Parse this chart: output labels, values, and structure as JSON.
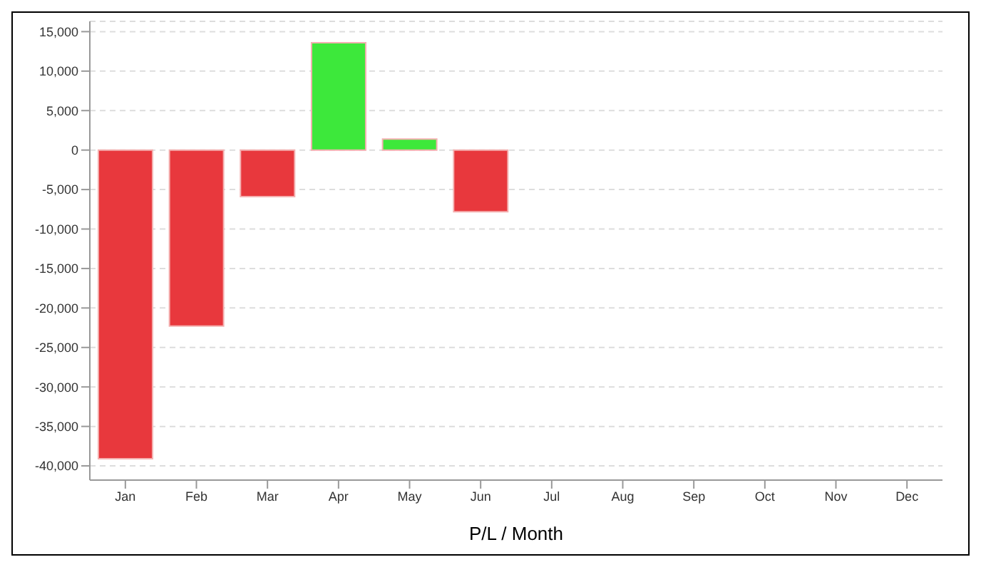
{
  "chart_data": {
    "type": "bar",
    "xlabel": "P/L / Month",
    "categories": [
      "Jan",
      "Feb",
      "Mar",
      "Apr",
      "May",
      "Jun",
      "Jul",
      "Aug",
      "Sep",
      "Oct",
      "Nov",
      "Dec"
    ],
    "values": [
      -39100,
      -22300,
      -5900,
      13600,
      1400,
      -7800,
      null,
      null,
      null,
      null,
      null,
      null
    ],
    "colors": [
      "#e8383d",
      "#e8383d",
      "#e8383d",
      "#3de83b",
      "#3de83b",
      "#e8383d",
      "#e8383d",
      "#e8383d",
      "#e8383d",
      "#e8383d",
      "#e8383d",
      "#e8383d"
    ],
    "ylim": [
      -41800,
      16300
    ],
    "yticks": [
      {
        "value": -40000,
        "label": "-40,000"
      },
      {
        "value": -35000,
        "label": "-35,000"
      },
      {
        "value": -30000,
        "label": "-30,000"
      },
      {
        "value": -25000,
        "label": "-25,000"
      },
      {
        "value": -20000,
        "label": "-20,000"
      },
      {
        "value": -15000,
        "label": "-15,000"
      },
      {
        "value": -10000,
        "label": "-10,000"
      },
      {
        "value": -5000,
        "label": "-5,000"
      },
      0,
      {
        "value": 5000,
        "label": "5,000"
      },
      {
        "value": 10000,
        "label": "10,000"
      },
      {
        "value": 15000,
        "label": "15,000"
      }
    ],
    "grid": "y",
    "legend": false
  }
}
